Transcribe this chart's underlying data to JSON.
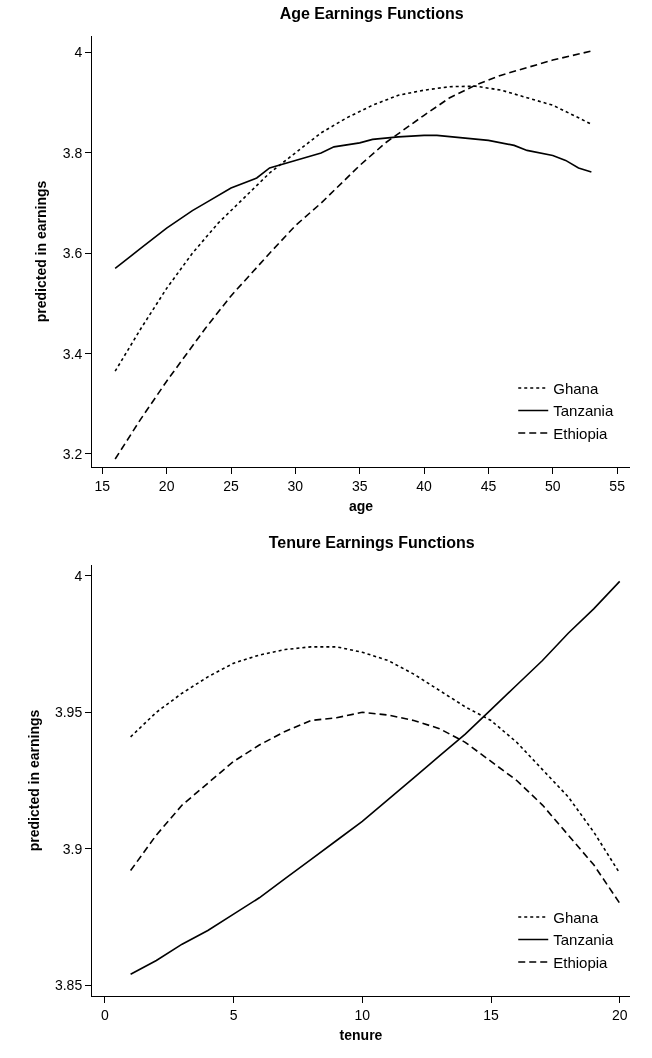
{
  "chart_data": [
    {
      "type": "line",
      "title": "Age Earnings Functions",
      "xlabel": "age",
      "ylabel": "predicted in earnings",
      "xlim": [
        14.2,
        56
      ],
      "xticks": [
        15,
        20,
        25,
        30,
        35,
        40,
        45,
        50,
        55
      ],
      "ylim": [
        3.174,
        4.033
      ],
      "yticks": [
        3.2,
        3.4,
        3.6,
        3.8,
        4
      ],
      "grid": false,
      "legend": "bottom right",
      "marker": "none",
      "series": [
        {
          "name": "Ghana",
          "color": "#000000",
          "line_style": "dotted",
          "x": [
            16,
            18,
            20,
            22,
            24,
            26,
            28,
            30,
            32,
            34,
            36,
            38,
            40,
            42,
            44,
            46,
            48,
            50,
            52,
            53
          ],
          "values": [
            3.365,
            3.45,
            3.53,
            3.6,
            3.66,
            3.71,
            3.76,
            3.8,
            3.84,
            3.87,
            3.895,
            3.915,
            3.925,
            3.932,
            3.933,
            3.925,
            3.91,
            3.895,
            3.87,
            3.857
          ]
        },
        {
          "name": "Tanzania",
          "color": "#000000",
          "line_style": "solid",
          "x": [
            16,
            18,
            20,
            22,
            23,
            25,
            27,
            28,
            30,
            32,
            33,
            35,
            36,
            38,
            40,
            41,
            43,
            45,
            47,
            48,
            50,
            51,
            52,
            53
          ],
          "values": [
            3.57,
            3.61,
            3.65,
            3.685,
            3.7,
            3.73,
            3.75,
            3.77,
            3.785,
            3.8,
            3.812,
            3.82,
            3.827,
            3.832,
            3.835,
            3.835,
            3.83,
            3.825,
            3.815,
            3.805,
            3.795,
            3.785,
            3.77,
            3.762
          ]
        },
        {
          "name": "Ethiopia",
          "color": "#000000",
          "line_style": "dashed",
          "x": [
            16,
            18,
            20,
            23,
            25,
            28,
            30,
            32,
            35,
            37,
            40,
            42,
            44,
            46,
            48,
            50,
            52,
            53
          ],
          "values": [
            3.19,
            3.27,
            3.345,
            3.45,
            3.515,
            3.6,
            3.655,
            3.7,
            3.775,
            3.82,
            3.875,
            3.91,
            3.935,
            3.955,
            3.97,
            3.985,
            3.997,
            4.003
          ]
        }
      ]
    },
    {
      "type": "line",
      "title": "Tenure Earnings Functions",
      "xlabel": "tenure",
      "ylabel": "predicted in earnings",
      "xlim": [
        -0.5,
        20.4
      ],
      "xticks": [
        0,
        5,
        10,
        15,
        20
      ],
      "ylim": [
        3.846,
        4.004
      ],
      "yticks": [
        3.85,
        3.9,
        3.95,
        4
      ],
      "grid": false,
      "legend": "bottom right",
      "marker": "none",
      "series": [
        {
          "name": "Ghana",
          "color": "#000000",
          "line_style": "dotted",
          "x": [
            1,
            2,
            3,
            4,
            5,
            6,
            7,
            8,
            9,
            10,
            11,
            12,
            13,
            14,
            15,
            16,
            17,
            18,
            19,
            20
          ],
          "values": [
            3.941,
            3.95,
            3.957,
            3.963,
            3.968,
            3.971,
            3.973,
            3.974,
            3.974,
            3.972,
            3.969,
            3.964,
            3.958,
            3.952,
            3.947,
            3.939,
            3.929,
            3.919,
            3.906,
            3.891
          ]
        },
        {
          "name": "Tanzania",
          "color": "#000000",
          "line_style": "solid",
          "x": [
            1,
            2,
            3,
            4,
            5,
            6,
            7,
            8,
            9,
            10,
            11,
            12,
            13,
            14,
            15,
            16,
            17,
            18,
            19,
            20
          ],
          "values": [
            3.854,
            3.859,
            3.865,
            3.87,
            3.876,
            3.882,
            3.889,
            3.896,
            3.903,
            3.91,
            3.918,
            3.926,
            3.934,
            3.942,
            3.951,
            3.96,
            3.969,
            3.979,
            3.988,
            3.998
          ]
        },
        {
          "name": "Ethiopia",
          "color": "#000000",
          "line_style": "dashed",
          "x": [
            1,
            2,
            3,
            4,
            5,
            6,
            7,
            8,
            9,
            10,
            11,
            12,
            13,
            14,
            15,
            16,
            17,
            18,
            19,
            20
          ],
          "values": [
            3.892,
            3.905,
            3.916,
            3.924,
            3.932,
            3.938,
            3.943,
            3.947,
            3.948,
            3.95,
            3.949,
            3.947,
            3.944,
            3.939,
            3.932,
            3.925,
            3.916,
            3.905,
            3.894,
            3.88
          ]
        }
      ]
    }
  ]
}
